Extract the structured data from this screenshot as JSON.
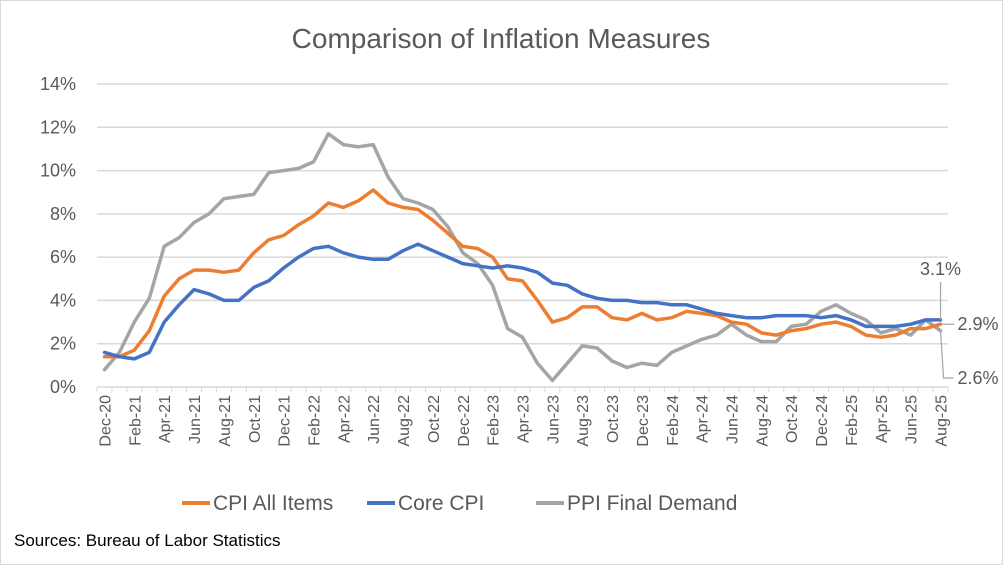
{
  "chart_data": {
    "type": "line",
    "title": "Comparison of Inflation Measures",
    "xlabel": "",
    "ylabel": "",
    "ylim": [
      0,
      14
    ],
    "yticks": [
      "0%",
      "2%",
      "4%",
      "6%",
      "8%",
      "10%",
      "12%",
      "14%"
    ],
    "ytick_values": [
      0,
      2,
      4,
      6,
      8,
      10,
      12,
      14
    ],
    "grid": true,
    "legend_position": "bottom",
    "x": [
      "Dec-20",
      "Jan-21",
      "Feb-21",
      "Mar-21",
      "Apr-21",
      "May-21",
      "Jun-21",
      "Jul-21",
      "Aug-21",
      "Sep-21",
      "Oct-21",
      "Nov-21",
      "Dec-21",
      "Jan-22",
      "Feb-22",
      "Mar-22",
      "Apr-22",
      "May-22",
      "Jun-22",
      "Jul-22",
      "Aug-22",
      "Sep-22",
      "Oct-22",
      "Nov-22",
      "Dec-22",
      "Jan-23",
      "Feb-23",
      "Mar-23",
      "Apr-23",
      "May-23",
      "Jun-23",
      "Jul-23",
      "Aug-23",
      "Sep-23",
      "Oct-23",
      "Nov-23",
      "Dec-23",
      "Jan-24",
      "Feb-24",
      "Mar-24",
      "Apr-24",
      "May-24",
      "Jun-24",
      "Jul-24",
      "Aug-24",
      "Sep-24",
      "Oct-24",
      "Nov-24",
      "Dec-24",
      "Jan-25",
      "Feb-25",
      "Mar-25",
      "Apr-25",
      "May-25",
      "Jun-25",
      "Jul-25",
      "Aug-25"
    ],
    "xtick_labels": [
      "Dec-20",
      "Feb-21",
      "Apr-21",
      "Jun-21",
      "Aug-21",
      "Oct-21",
      "Dec-21",
      "Feb-22",
      "Apr-22",
      "Jun-22",
      "Aug-22",
      "Oct-22",
      "Dec-22",
      "Feb-23",
      "Apr-23",
      "Jun-23",
      "Aug-23",
      "Oct-23",
      "Dec-23",
      "Feb-24",
      "Apr-24",
      "Jun-24",
      "Aug-24",
      "Oct-24",
      "Dec-24",
      "Feb-25",
      "Apr-25",
      "Jun-25",
      "Aug-25"
    ],
    "series": [
      {
        "name": "CPI All Items",
        "color": "#ED7D31",
        "values": [
          1.4,
          1.4,
          1.7,
          2.6,
          4.2,
          5.0,
          5.4,
          5.4,
          5.3,
          5.4,
          6.2,
          6.8,
          7.0,
          7.5,
          7.9,
          8.5,
          8.3,
          8.6,
          9.1,
          8.5,
          8.3,
          8.2,
          7.7,
          7.1,
          6.5,
          6.4,
          6.0,
          5.0,
          4.9,
          4.0,
          3.0,
          3.2,
          3.7,
          3.7,
          3.2,
          3.1,
          3.4,
          3.1,
          3.2,
          3.5,
          3.4,
          3.3,
          3.0,
          2.9,
          2.5,
          2.4,
          2.6,
          2.7,
          2.9,
          3.0,
          2.8,
          2.4,
          2.3,
          2.4,
          2.7,
          2.7,
          2.9
        ]
      },
      {
        "name": "Core CPI",
        "color": "#4472C4",
        "values": [
          1.6,
          1.4,
          1.3,
          1.6,
          3.0,
          3.8,
          4.5,
          4.3,
          4.0,
          4.0,
          4.6,
          4.9,
          5.5,
          6.0,
          6.4,
          6.5,
          6.2,
          6.0,
          5.9,
          5.9,
          6.3,
          6.6,
          6.3,
          6.0,
          5.7,
          5.6,
          5.5,
          5.6,
          5.5,
          5.3,
          4.8,
          4.7,
          4.3,
          4.1,
          4.0,
          4.0,
          3.9,
          3.9,
          3.8,
          3.8,
          3.6,
          3.4,
          3.3,
          3.2,
          3.2,
          3.3,
          3.3,
          3.3,
          3.2,
          3.3,
          3.1,
          2.8,
          2.8,
          2.8,
          2.9,
          3.1,
          3.1
        ]
      },
      {
        "name": "PPI Final Demand",
        "color": "#A5A5A5",
        "values": [
          0.8,
          1.6,
          3.0,
          4.1,
          6.5,
          6.9,
          7.6,
          8.0,
          8.7,
          8.8,
          8.9,
          9.9,
          10.0,
          10.1,
          10.4,
          11.7,
          11.2,
          11.1,
          11.2,
          9.7,
          8.7,
          8.5,
          8.2,
          7.4,
          6.2,
          5.7,
          4.7,
          2.7,
          2.3,
          1.1,
          0.3,
          1.1,
          1.9,
          1.8,
          1.2,
          0.9,
          1.1,
          1.0,
          1.6,
          1.9,
          2.2,
          2.4,
          2.9,
          2.4,
          2.1,
          2.1,
          2.8,
          2.9,
          3.5,
          3.8,
          3.4,
          3.1,
          2.5,
          2.7,
          2.4,
          3.1,
          2.6
        ]
      }
    ],
    "annotations": [
      {
        "series": "Core CPI",
        "label": "3.1%"
      },
      {
        "series": "CPI All Items",
        "label": "2.9%"
      },
      {
        "series": "PPI Final Demand",
        "label": "2.6%"
      }
    ]
  },
  "source_note": "Sources: Bureau of Labor Statistics"
}
